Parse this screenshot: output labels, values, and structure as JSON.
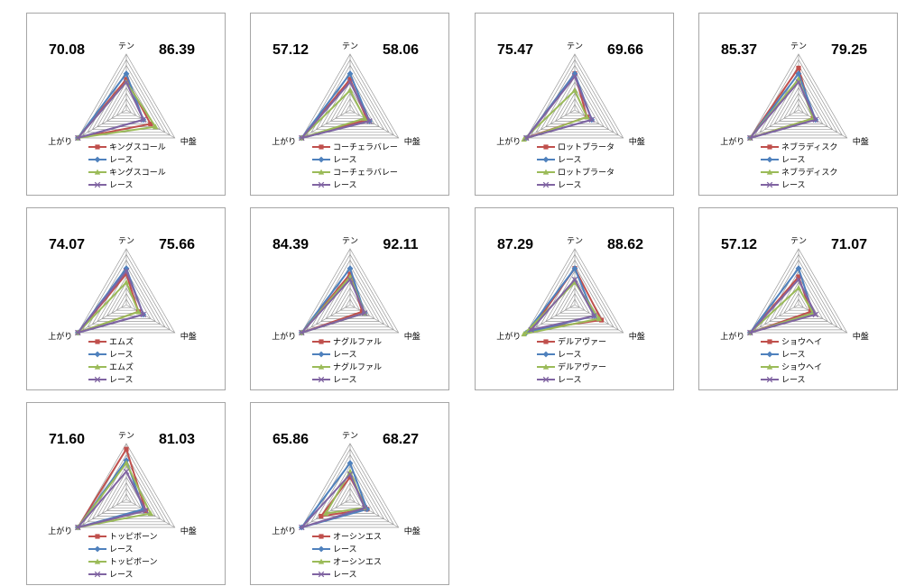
{
  "chart_data": [
    {
      "type": "radar",
      "axes": [
        "テン",
        "中盤",
        "上がり"
      ],
      "scores": {
        "left": "70.08",
        "right": "86.39"
      },
      "rmax": 10,
      "series": [
        {
          "name": "キングスコール",
          "values": [
            5.5,
            5,
            10
          ]
        },
        {
          "name": "レース",
          "values": [
            6.5,
            3.5,
            10
          ]
        },
        {
          "name": "キングスコール",
          "values": [
            5,
            6,
            10
          ]
        },
        {
          "name": "レース",
          "values": [
            5,
            3.5,
            10
          ]
        }
      ]
    },
    {
      "type": "radar",
      "axes": [
        "テン",
        "中盤",
        "上がり"
      ],
      "scores": {
        "left": "57.12",
        "right": "58.06"
      },
      "rmax": 10,
      "series": [
        {
          "name": "コーチェラバレー",
          "values": [
            5.5,
            3.5,
            10
          ]
        },
        {
          "name": "レース",
          "values": [
            6.5,
            4,
            10
          ]
        },
        {
          "name": "コーチェラバレー",
          "values": [
            3.5,
            3,
            10
          ]
        },
        {
          "name": "レース",
          "values": [
            5,
            4,
            10
          ]
        }
      ]
    },
    {
      "type": "radar",
      "axes": [
        "テン",
        "中盤",
        "上がり"
      ],
      "scores": {
        "left": "75.47",
        "right": "69.66"
      },
      "rmax": 10,
      "series": [
        {
          "name": "ロットブラータ",
          "values": [
            6.5,
            2.5,
            10
          ]
        },
        {
          "name": "レース",
          "values": [
            6.5,
            3.5,
            10
          ]
        },
        {
          "name": "ロットブラータ",
          "values": [
            3.5,
            2.5,
            10.5
          ]
        },
        {
          "name": "レース",
          "values": [
            6,
            3.5,
            10
          ]
        }
      ]
    },
    {
      "type": "radar",
      "axes": [
        "テン",
        "中盤",
        "上がり"
      ],
      "scores": {
        "left": "85.37",
        "right": "79.25"
      },
      "rmax": 10,
      "series": [
        {
          "name": "ネブラディスク",
          "values": [
            7.5,
            3,
            10
          ]
        },
        {
          "name": "レース",
          "values": [
            6.5,
            3.5,
            10
          ]
        },
        {
          "name": "ネブラディスク",
          "values": [
            5.5,
            3,
            10
          ]
        },
        {
          "name": "レース",
          "values": [
            5,
            3.5,
            10
          ]
        }
      ]
    },
    {
      "type": "radar",
      "axes": [
        "テン",
        "中盤",
        "上がり"
      ],
      "scores": {
        "left": "74.07",
        "right": "75.66"
      },
      "rmax": 10,
      "series": [
        {
          "name": "エムズ",
          "values": [
            5.5,
            2.5,
            10
          ]
        },
        {
          "name": "レース",
          "values": [
            6.5,
            3.5,
            10
          ]
        },
        {
          "name": "エムズ",
          "values": [
            4,
            2.5,
            10
          ]
        },
        {
          "name": "レース",
          "values": [
            6,
            3.5,
            10
          ]
        }
      ]
    },
    {
      "type": "radar",
      "axes": [
        "テン",
        "中盤",
        "上がり"
      ],
      "scores": {
        "left": "84.39",
        "right": "92.11"
      },
      "rmax": 10,
      "series": [
        {
          "name": "ナグルファル",
          "values": [
            5.5,
            2.5,
            10
          ]
        },
        {
          "name": "レース",
          "values": [
            6.5,
            3,
            10
          ]
        },
        {
          "name": "ナグルファル",
          "values": [
            5,
            3,
            10
          ]
        },
        {
          "name": "レース",
          "values": [
            4.5,
            3,
            10
          ]
        }
      ]
    },
    {
      "type": "radar",
      "axes": [
        "テン",
        "中盤",
        "上がり"
      ],
      "scores": {
        "left": "87.29",
        "right": "88.62"
      },
      "rmax": 10,
      "series": [
        {
          "name": "デルアヴァー",
          "values": [
            6.5,
            5.5,
            9
          ]
        },
        {
          "name": "レース",
          "values": [
            6.5,
            4,
            10
          ]
        },
        {
          "name": "デルアヴァー",
          "values": [
            4,
            5,
            10.5
          ]
        },
        {
          "name": "レース",
          "values": [
            4.5,
            4,
            9
          ]
        }
      ]
    },
    {
      "type": "radar",
      "axes": [
        "テン",
        "中盤",
        "上がり"
      ],
      "scores": {
        "left": "57.12",
        "right": "71.07"
      },
      "rmax": 10,
      "series": [
        {
          "name": "ショウヘイ",
          "values": [
            5,
            2.5,
            10
          ]
        },
        {
          "name": "レース",
          "values": [
            6.5,
            3,
            10
          ]
        },
        {
          "name": "ショウヘイ",
          "values": [
            3,
            3,
            10
          ]
        },
        {
          "name": "レース",
          "values": [
            4.5,
            3.5,
            10
          ]
        }
      ]
    },
    {
      "type": "radar",
      "axes": [
        "テン",
        "中盤",
        "上がり"
      ],
      "scores": {
        "left": "71.60",
        "right": "81.03"
      },
      "rmax": 10,
      "series": [
        {
          "name": "トッピボーン",
          "values": [
            9,
            4,
            10
          ]
        },
        {
          "name": "レース",
          "values": [
            7,
            3.5,
            10
          ]
        },
        {
          "name": "トッピボーン",
          "values": [
            6.5,
            5,
            10
          ]
        },
        {
          "name": "レース",
          "values": [
            5,
            4,
            10
          ]
        }
      ]
    },
    {
      "type": "radar",
      "axes": [
        "テン",
        "中盤",
        "上がり"
      ],
      "scores": {
        "left": "65.86",
        "right": "68.27"
      },
      "rmax": 10,
      "series": [
        {
          "name": "オーシンエス",
          "values": [
            4,
            3.5,
            6
          ]
        },
        {
          "name": "レース",
          "values": [
            6.5,
            3.5,
            10
          ]
        },
        {
          "name": "オーシンエス",
          "values": [
            5,
            3,
            5
          ]
        },
        {
          "name": "レース",
          "values": [
            4.5,
            3,
            10
          ]
        }
      ]
    }
  ],
  "style": {
    "series_colors": [
      "#c0504d",
      "#4f81bd",
      "#9bbb59",
      "#8064a2"
    ],
    "series_markers": [
      "square",
      "diamond",
      "triangle",
      "x"
    ],
    "grid_color": "#9a9a9a",
    "border_color": "#a6a6a6"
  }
}
